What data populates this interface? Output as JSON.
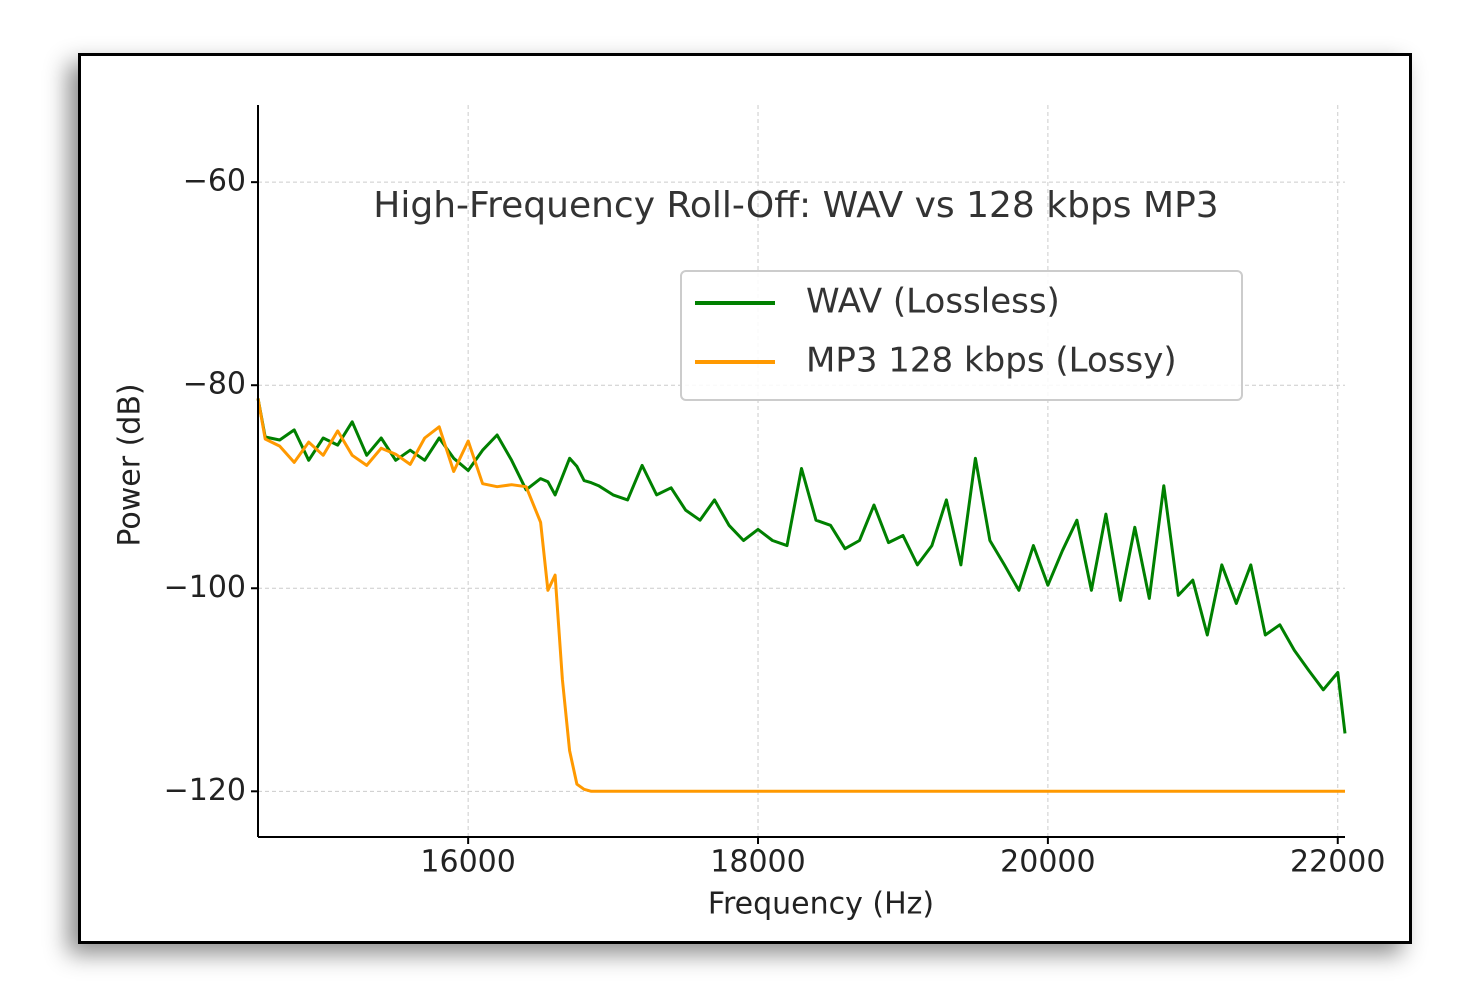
{
  "chart_data": {
    "type": "line",
    "title": "High-Frequency Roll-Off: WAV vs 128 kbps MP3",
    "x_label": "Frequency (Hz)",
    "y_label": "Power (dB)",
    "x": [
      14550,
      14600,
      14700,
      14800,
      14900,
      15000,
      15100,
      15200,
      15300,
      15400,
      15500,
      15600,
      15700,
      15800,
      15900,
      16000,
      16100,
      16200,
      16300,
      16400,
      16500,
      16550,
      16600,
      16650,
      16700,
      16750,
      16800,
      16850,
      16900,
      17000,
      17100,
      17200,
      17300,
      17400,
      17500,
      17600,
      17700,
      17800,
      17900,
      18000,
      18100,
      18200,
      18300,
      18400,
      18500,
      18600,
      18700,
      18800,
      18900,
      19000,
      19100,
      19200,
      19300,
      19400,
      19500,
      19600,
      19700,
      19800,
      19900,
      20000,
      20100,
      20200,
      20300,
      20400,
      20500,
      20600,
      20700,
      20800,
      20900,
      21000,
      21100,
      21200,
      21300,
      21400,
      21500,
      21600,
      21700,
      21800,
      21900,
      22000,
      22050
    ],
    "series": [
      {
        "name": "WAV (Lossless)",
        "color": "#008000",
        "values": [
          -81.3,
          -85.1,
          -85.4,
          -84.4,
          -87.4,
          -85.2,
          -85.9,
          -83.6,
          -86.9,
          -85.2,
          -87.4,
          -86.4,
          -87.4,
          -85.2,
          -87.2,
          -88.4,
          -86.4,
          -84.9,
          -87.4,
          -90.3,
          -89.2,
          -89.5,
          -90.8,
          -89.0,
          -87.2,
          -88.0,
          -89.4,
          -89.6,
          -89.9,
          -90.8,
          -91.3,
          -87.9,
          -90.8,
          -90.1,
          -92.3,
          -93.3,
          -91.3,
          -93.8,
          -95.3,
          -94.2,
          -95.3,
          -95.8,
          -88.2,
          -93.3,
          -93.8,
          -96.1,
          -95.3,
          -91.8,
          -95.5,
          -94.8,
          -97.7,
          -95.8,
          -91.3,
          -97.7,
          -87.2,
          -95.3,
          -97.7,
          -100.2,
          -95.8,
          -99.7,
          -96.3,
          -93.3,
          -100.2,
          -92.7,
          -101.2,
          -94.0,
          -101.0,
          -89.9,
          -100.7,
          -99.2,
          -104.6,
          -97.7,
          -101.5,
          -97.7,
          -104.6,
          -103.6,
          -106.1,
          -108.1,
          -110.0,
          -108.3,
          -114.3
        ]
      },
      {
        "name": "MP3 128 kbps (Lossy)",
        "color": "#ff9900",
        "values": [
          -81.3,
          -85.3,
          -86.0,
          -87.6,
          -85.6,
          -86.9,
          -84.5,
          -86.9,
          -87.9,
          -86.2,
          -86.8,
          -87.8,
          -85.2,
          -84.1,
          -88.5,
          -85.5,
          -89.7,
          -90.0,
          -89.8,
          -90.0,
          -93.5,
          -100.2,
          -98.7,
          -109.0,
          -116.0,
          -119.3,
          -119.8,
          -120.0,
          -120.0,
          -120.0,
          -120.0,
          -120.0,
          -120.0,
          -120.0,
          -120.0,
          -120.0,
          -120.0,
          -120.0,
          -120.0,
          -120.0,
          -120.0,
          -120.0,
          -120.0,
          -120.0,
          -120.0,
          -120.0,
          -120.0,
          -120.0,
          -120.0,
          -120.0,
          -120.0,
          -120.0,
          -120.0,
          -120.0,
          -120.0,
          -120.0,
          -120.0,
          -120.0,
          -120.0,
          -120.0,
          -120.0,
          -120.0,
          -120.0,
          -120.0,
          -120.0,
          -120.0,
          -120.0,
          -120.0,
          -120.0,
          -120.0,
          -120.0,
          -120.0,
          -120.0,
          -120.0,
          -120.0,
          -120.0,
          -120.0,
          -120.0,
          -120.0,
          -120.0,
          -120.0
        ]
      }
    ],
    "xlim": [
      14550,
      22050
    ],
    "ylim": [
      -124.5,
      -52.4
    ],
    "xticks": [
      16000,
      18000,
      20000,
      22000
    ],
    "yticks": [
      {
        "value": -60,
        "label": "−60"
      },
      {
        "value": -80,
        "label": "−80"
      },
      {
        "value": -100,
        "label": "−100"
      },
      {
        "value": -120,
        "label": "−120"
      }
    ],
    "grid": true,
    "legend": "upper right"
  }
}
